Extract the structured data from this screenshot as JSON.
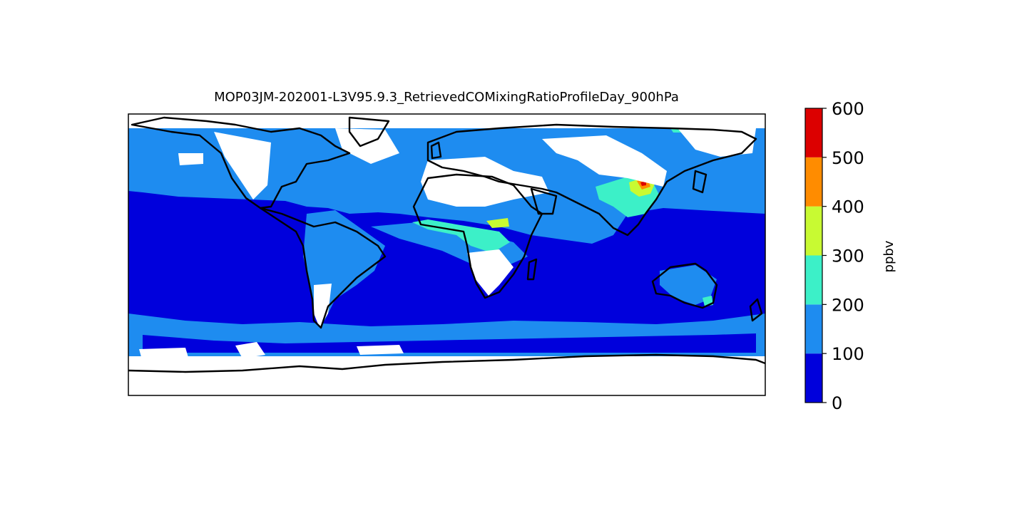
{
  "title": "MOP03JM-202001-L3V95.9.3_RetrievedCOMixingRatioProfileDay_900hPa",
  "chart_data": {
    "type": "heatmap",
    "title": "MOP03JM-202001-L3V95.9.3_RetrievedCOMixingRatioProfileDay_900hPa",
    "colorbar": {
      "label": "ppbv",
      "ticks": [
        "0",
        "100",
        "200",
        "300",
        "400",
        "500",
        "600"
      ],
      "range": [
        0,
        600
      ],
      "levels": [
        {
          "min": 0,
          "max": 100,
          "color": "#0000dc"
        },
        {
          "min": 100,
          "max": 200,
          "color": "#1e8cf0"
        },
        {
          "min": 200,
          "max": 300,
          "color": "#3cf0c8"
        },
        {
          "min": 300,
          "max": 400,
          "color": "#c8fa32"
        },
        {
          "min": 400,
          "max": 500,
          "color": "#ff8c00"
        },
        {
          "min": 500,
          "max": 600,
          "color": "#dc0000"
        }
      ]
    },
    "colors": {
      "missing": "#ffffff",
      "coastline": "#000000"
    }
  }
}
